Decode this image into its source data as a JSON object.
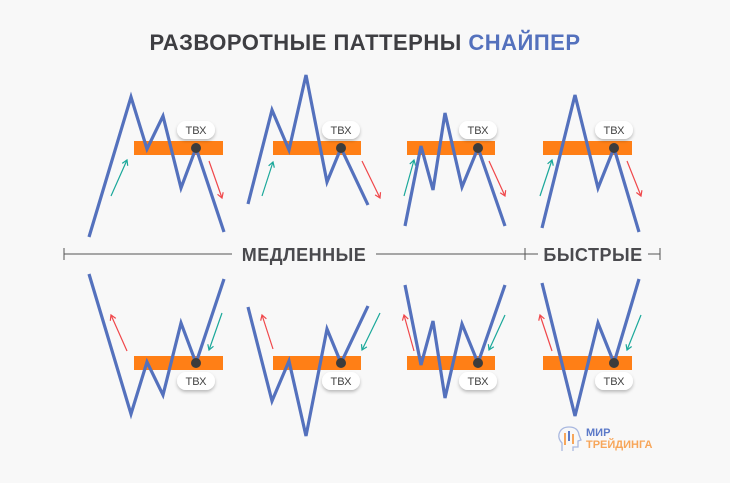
{
  "title": {
    "main": "РАЗВОРОТНЫЕ ПАТТЕРНЫ",
    "accent": "СНАЙПЕР"
  },
  "entry_label": "ТВХ",
  "axis": {
    "slow": "МЕДЛЕННЫЕ",
    "fast": "БЫСТРЫЕ"
  },
  "logo": {
    "line1": "МИР",
    "line2": "ТРЕЙДИНГА"
  },
  "colors": {
    "line": "#5471bd",
    "zone": "#ff7f16",
    "up": "#1aa89a",
    "down": "#f0474a",
    "dot": "#3c3c3c"
  }
}
